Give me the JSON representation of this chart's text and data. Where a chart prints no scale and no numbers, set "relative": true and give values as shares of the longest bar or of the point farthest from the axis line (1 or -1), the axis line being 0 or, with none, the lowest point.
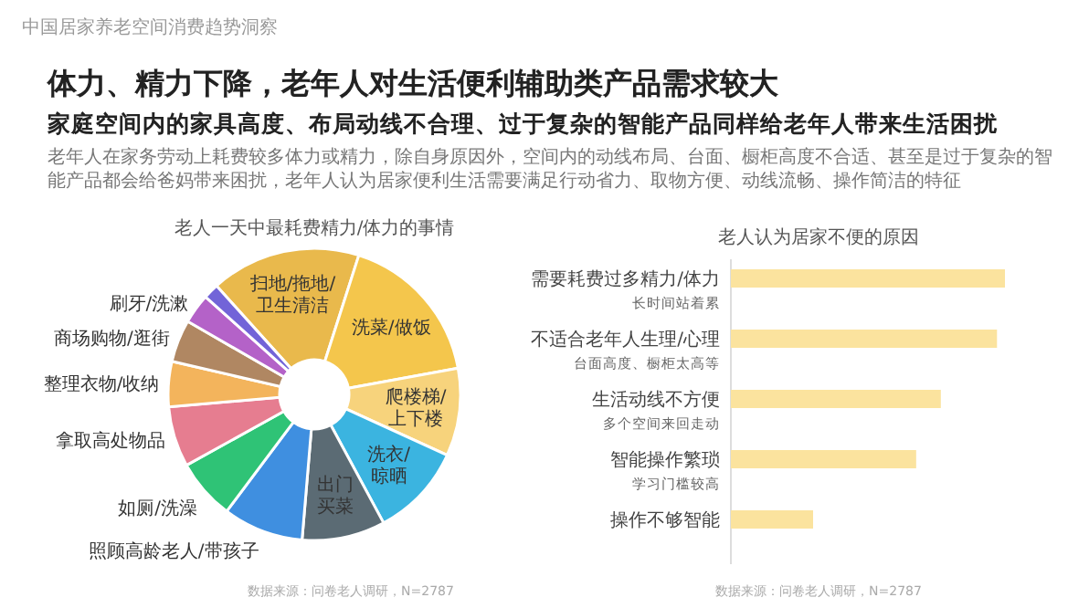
{
  "chart_data": [
    {
      "type": "other",
      "title": "体力、精力下降，老年人对生活便利辅助类产品需求较大",
      "subtitle": "家庭空间内的家具高度、布局动线不合理、过于复杂的智能产品同样给老年人带来生活困扰",
      "annotations": [
        "中国居家养老空间消费趋势洞察",
        "老年人在家务劳动上耗费较多体力或精力，除自身原因外，空间内的动线布局、台面、橱柜高度不合适、甚至是过于复杂的智能产品都会给爸妈带来困扰，老年人认为居家便利生活需要满足行动省力、取物方便、动线流畅、操作简洁的特征"
      ]
    },
    {
      "type": "donut",
      "title": "老人一天中最耗费精力/体力的事情",
      "categories": [
        "扫地/拖地/卫生清洁",
        "洗菜/做饭",
        "爬楼梯/上下楼",
        "洗衣/晾晒",
        "出门买菜",
        "照顾高龄老人/带孩子",
        "如厕/洗澡",
        "拿取高处物品",
        "整理衣物/收纳",
        "商场购物/逛街",
        "刷牙/洗漱",
        null
      ],
      "values": [
        16.6,
        17.2,
        9.7,
        10.3,
        9.2,
        8.9,
        6.7,
        6.7,
        5.0,
        4.7,
        3.3,
        1.7
      ],
      "colors": [
        "#e9b94c",
        "#f4c64c",
        "#f7d37c",
        "#3bb4e0",
        "#5b6b74",
        "#3f8fe0",
        "#2fc376",
        "#e67d90",
        "#f3b45c",
        "#b08762",
        "#b462c8",
        "#7264d8"
      ],
      "annotations": [
        "数据来源：问卷老人调研，N=2787"
      ]
    },
    {
      "type": "bar",
      "orientation": "horizontal",
      "relative": true,
      "title": "老人认为居家不便的原因",
      "categories": [
        "需要耗费过多精力/体力",
        "不适合老年人生理/心理",
        "生活动线不方便",
        "智能操作繁琐",
        "操作不够智能"
      ],
      "values": [
        1,
        0.971,
        0.766,
        0.676,
        0.3
      ],
      "color": "#fbe39e",
      "annotations": [
        "长时间站着累",
        "台面高度、橱柜太高等",
        "多个空间来回走动",
        "学习门槛较高",
        "数据来源：问卷老人调研，N=2787"
      ]
    }
  ]
}
